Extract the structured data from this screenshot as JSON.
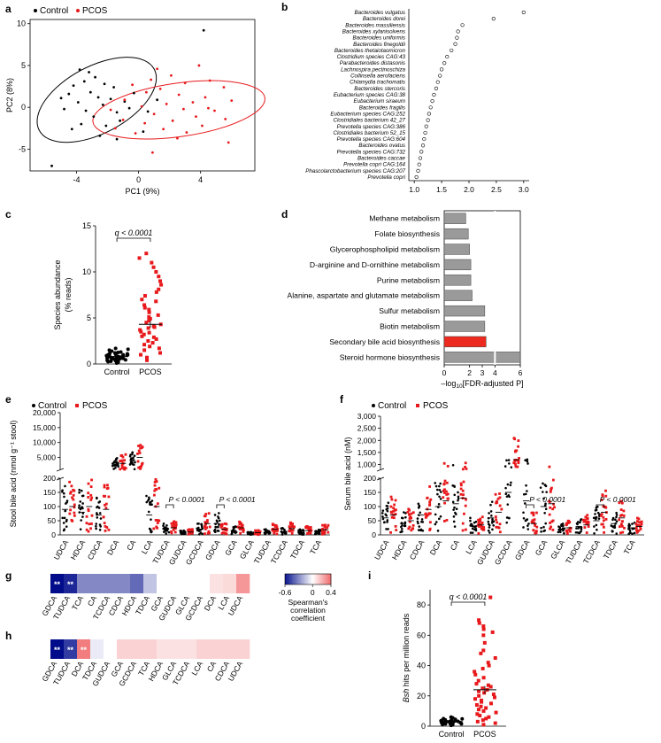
{
  "panels": {
    "a": "a",
    "b": "b",
    "c": "c",
    "d": "d",
    "e": "e",
    "f": "f",
    "g": "g",
    "h": "h",
    "i": "i"
  },
  "colors": {
    "control": "#000000",
    "pcos": "#e8191c",
    "bar_grey": "#9a9a9a",
    "bar_highlight": "#ec2a1f",
    "neg": "#000c8a",
    "pos": "#e8191c"
  },
  "legend": {
    "control": "Control",
    "pcos": "PCOS"
  },
  "chart_data": [
    {
      "id": "a",
      "type": "scatter",
      "xlabel": "PC1 (9%)",
      "ylabel": "PC2 (8%)",
      "xlim": [
        -7,
        7.5
      ],
      "ylim": [
        -7.6,
        10.5
      ],
      "xticks": [
        "-4",
        "0",
        "4"
      ],
      "xtick_values": [
        -4,
        0,
        4
      ],
      "yticks": [
        "-5",
        "0",
        "5",
        "10"
      ],
      "ytick_values": [
        -5,
        0,
        5,
        10
      ],
      "ellipses": [
        {
          "group": "control",
          "center": [
            -2.7,
            0.9
          ],
          "semi_axes": [
            4.2,
            4.0
          ],
          "angle_deg": 28
        },
        {
          "group": "pcos",
          "center": [
            2.6,
            -0.3
          ],
          "semi_axes": [
            5.6,
            3.2
          ],
          "angle_deg": 8
        }
      ],
      "series": [
        {
          "name": "Control",
          "points": [
            [
              -5.6,
              -7
            ],
            [
              4.2,
              9.2
            ],
            [
              -3.8,
              4.5
            ],
            [
              -3.2,
              4.2
            ],
            [
              -2.8,
              3.6
            ],
            [
              -3.5,
              3.1
            ],
            [
              -4.2,
              2.6
            ],
            [
              -2.2,
              2.8
            ],
            [
              -1.6,
              2.4
            ],
            [
              -3.1,
              1.8
            ],
            [
              -4.5,
              1.6
            ],
            [
              -2.6,
              1.2
            ],
            [
              -1.8,
              1.0
            ],
            [
              -3.9,
              0.6
            ],
            [
              -0.9,
              0.7
            ],
            [
              -2.3,
              0.3
            ],
            [
              -4.8,
              -0.2
            ],
            [
              -3.4,
              -0.4
            ],
            [
              -1.4,
              -0.6
            ],
            [
              -0.6,
              -0.1
            ],
            [
              0.6,
              -0.5
            ],
            [
              -2.9,
              -1.1
            ],
            [
              -3.7,
              -2.0
            ],
            [
              -2.1,
              -2.2
            ],
            [
              -1.2,
              -1.6
            ],
            [
              -4.3,
              -2.6
            ],
            [
              -2.5,
              -3.4
            ],
            [
              0.3,
              -2.9
            ],
            [
              -0.3,
              1.7
            ],
            [
              -5.0,
              1.1
            ],
            [
              -1.4,
              -3.8
            ],
            [
              1.2,
              0.9
            ]
          ]
        },
        {
          "name": "PCOS",
          "points": [
            [
              1.2,
              4.6
            ],
            [
              3.9,
              5.0
            ],
            [
              2.1,
              3.8
            ],
            [
              0.8,
              3.3
            ],
            [
              4.6,
              3.2
            ],
            [
              5.5,
              2.4
            ],
            [
              3.0,
              2.9
            ],
            [
              1.4,
              2.2
            ],
            [
              -0.4,
              2.7
            ],
            [
              0.5,
              1.8
            ],
            [
              2.6,
              1.5
            ],
            [
              4.3,
              1.2
            ],
            [
              6.0,
              0.8
            ],
            [
              3.5,
              0.6
            ],
            [
              1.8,
              0.4
            ],
            [
              -0.9,
              0.9
            ],
            [
              0.2,
              0.1
            ],
            [
              2.9,
              -0.2
            ],
            [
              4.9,
              -0.4
            ],
            [
              1.0,
              -0.8
            ],
            [
              -1.8,
              -0.3
            ],
            [
              3.7,
              -1.1
            ],
            [
              5.6,
              -1.4
            ],
            [
              2.2,
              -1.6
            ],
            [
              0.4,
              -1.9
            ],
            [
              -1.0,
              -1.5
            ],
            [
              4.1,
              -2.2
            ],
            [
              1.6,
              -2.6
            ],
            [
              -0.2,
              -3.1
            ],
            [
              3.1,
              -3.0
            ],
            [
              5.8,
              -4.2
            ],
            [
              0.9,
              -5.4
            ],
            [
              2.5,
              -3.7
            ],
            [
              -1.5,
              -2.5
            ],
            [
              4.5,
              -0.1
            ]
          ]
        }
      ]
    },
    {
      "id": "b",
      "type": "scatter",
      "xlim": [
        0.9,
        3.1
      ],
      "xticks": [
        "1.0",
        "1.5",
        "2.0",
        "2.5",
        "3.0"
      ],
      "xtick_values": [
        1.0,
        1.5,
        2.0,
        2.5,
        3.0
      ],
      "categories": [
        "Bacteroides vulgatus",
        "Bacteroides dorei",
        "Bacteroides massiliensis",
        "Bacteroides xylanisolvens",
        "Bacteroides uniformis",
        "Bacteroides finegoldii",
        "Bacteroides thetaiotaomicron",
        "Clostridium species CAG:43",
        "Parabacteroides distasonis",
        "Lachnospira pectinoschiza",
        "Collinsella aerofaciens",
        "Chlamydia trachomatis",
        "Bacteroides stercoris",
        "Eubacterium species CAG:38",
        "Eubacterium siraeum",
        "Bacteroides fragilis",
        "Eubacterium species CAG:252",
        "Clostridiales bacterium 42_27",
        "Prevotella species CAG:386",
        "Clostridiales bacterium 52_15",
        "Prevotella species CAG:604",
        "Bacteroides ovatus",
        "Prevotella species CAG:732",
        "Bacteroides caccae",
        "Prevotella copri CAG:164",
        "Phascolarctobacterium species CAG:207",
        "Prevotella copri"
      ],
      "values": [
        3.0,
        2.45,
        1.88,
        1.8,
        1.78,
        1.75,
        1.68,
        1.6,
        1.55,
        1.5,
        1.47,
        1.43,
        1.4,
        1.36,
        1.33,
        1.3,
        1.27,
        1.25,
        1.22,
        1.2,
        1.18,
        1.16,
        1.13,
        1.11,
        1.09,
        1.07,
        1.04
      ]
    },
    {
      "id": "c",
      "type": "scatter",
      "ylabel_lines": [
        "Species abundance",
        "(% reads)"
      ],
      "categories": [
        "Control",
        "PCOS"
      ],
      "ylim": [
        0,
        15
      ],
      "yticks": [
        "0",
        "5",
        "10",
        "15"
      ],
      "ytick_values": [
        0,
        5,
        10,
        15
      ],
      "annotation": "q < 0.0001",
      "mean_sem": [
        {
          "mean": 0.8,
          "sem": 0.08
        },
        {
          "mean": 4.3,
          "sem": 0.35
        }
      ],
      "series": [
        {
          "name": "Control",
          "values": [
            0.1,
            0.2,
            0.25,
            0.3,
            0.35,
            0.4,
            0.4,
            0.45,
            0.5,
            0.5,
            0.55,
            0.6,
            0.6,
            0.65,
            0.7,
            0.7,
            0.75,
            0.8,
            0.8,
            0.85,
            0.9,
            0.9,
            0.95,
            1.0,
            1.0,
            1.05,
            1.1,
            1.15,
            1.2,
            1.25,
            1.3,
            1.4,
            1.5,
            1.6,
            1.7,
            0.3,
            0.5,
            0.65,
            0.85,
            1.0
          ]
        },
        {
          "name": "PCOS",
          "values": [
            0.4,
            0.7,
            1.0,
            1.2,
            1.5,
            1.7,
            1.9,
            2.1,
            2.3,
            2.5,
            2.7,
            2.9,
            3.0,
            3.2,
            3.4,
            3.5,
            3.7,
            3.9,
            4.0,
            4.1,
            4.3,
            4.5,
            4.7,
            4.9,
            5.1,
            5.3,
            5.6,
            5.9,
            6.1,
            6.4,
            6.8,
            7.0,
            7.4,
            7.8,
            8.1,
            8.6,
            9.0,
            9.5,
            10.0,
            10.5,
            11.0,
            11.5,
            12.0
          ]
        }
      ]
    },
    {
      "id": "d",
      "type": "bar",
      "xlabel_pre": "–log",
      "xlabel_sub": "10",
      "xlabel_post": "[FDR-adjusted P]",
      "xlim": [
        0,
        6
      ],
      "xticks": [
        "0",
        "2",
        "3",
        "4",
        "6"
      ],
      "xtick_values": [
        0,
        2,
        3,
        4,
        6
      ],
      "categories": [
        "Methane metabolism",
        "Folate biosynthesis",
        "Glycerophospholipid metabolism",
        "D-arginine and D-ornithine metabolism",
        "Purine metabolism",
        "Alanine, aspartate and glutamate metabolism",
        "Sulfur metabolism",
        "Biotin metabolism",
        "Secondary bile acid biosynthesis",
        "Steroid hormone biosynthesis"
      ],
      "values": [
        1.7,
        1.9,
        2.0,
        2.1,
        2.1,
        2.2,
        3.2,
        3.2,
        3.3,
        6.0
      ],
      "highlight": "Secondary bile acid biosynthesis"
    },
    {
      "id": "e",
      "type": "scatter",
      "ylabel": "Stool bile acid (nmol g⁻¹ stool)",
      "categories": [
        "UDCA",
        "HDCA",
        "CDCA",
        "DCA",
        "CA",
        "LCA",
        "TUDCA",
        "GUDCA",
        "GCDCA",
        "GDCA",
        "GCA",
        "GLCA",
        "TUDCA",
        "TCDCA",
        "TDCA",
        "TCA"
      ],
      "upper_ticks": [
        "5,000",
        "10,000",
        "15,000",
        "20,000"
      ],
      "upper_tick_values": [
        5000,
        10000,
        15000,
        20000
      ],
      "lower_ticks": [
        "0",
        "50",
        "100",
        "150",
        "200"
      ],
      "lower_tick_values": [
        0,
        50,
        100,
        150,
        200
      ],
      "annotations": [
        {
          "text": "P < 0.0001",
          "category": "GDCA"
        },
        {
          "text": "P < 0.0001",
          "category": "TUDCA"
        }
      ],
      "series": [
        {
          "name": "Control",
          "medians": [
            90,
            80,
            70,
            2500,
            4000,
            70,
            20,
            8,
            20,
            40,
            15,
            5,
            10,
            12,
            10,
            10
          ]
        },
        {
          "name": "PCOS",
          "medians": [
            100,
            100,
            90,
            3000,
            5000,
            100,
            25,
            10,
            40,
            20,
            25,
            8,
            20,
            22,
            15,
            18
          ]
        }
      ]
    },
    {
      "id": "f",
      "type": "scatter",
      "ylabel": "Serum bile acid (nM)",
      "categories": [
        "UDCA",
        "HDCA",
        "CDCA",
        "DCA",
        "CA",
        "LCA",
        "GUDCA",
        "GCDCA",
        "GDCA",
        "GCA",
        "GLCA",
        "TUDCA",
        "TCDCA",
        "TDCA",
        "TCA"
      ],
      "upper_ticks": [
        "1,000",
        "1,500",
        "2,000",
        "2,500",
        "3,000"
      ],
      "upper_tick_values": [
        1000,
        1500,
        2000,
        2500,
        3000
      ],
      "lower_ticks": [
        "0",
        "50",
        "100",
        "150",
        "200"
      ],
      "lower_tick_values": [
        0,
        50,
        100,
        150,
        200
      ],
      "annotations": [
        {
          "text": "P < 0.0001",
          "category": "GDCA"
        },
        {
          "text": "P < 0.0001",
          "category": "TCDCA"
        }
      ],
      "series": [
        {
          "name": "Control",
          "medians": [
            60,
            40,
            70,
            100,
            110,
            30,
            60,
            150,
            120,
            100,
            20,
            30,
            50,
            40,
            25
          ]
        },
        {
          "name": "PCOS",
          "medians": [
            70,
            50,
            90,
            120,
            130,
            35,
            80,
            1200,
            40,
            110,
            25,
            35,
            80,
            60,
            30
          ]
        }
      ]
    },
    {
      "id": "g",
      "type": "heatmap",
      "categories": [
        "GDCA",
        "TUDCA",
        "TCA",
        "CA",
        "TCDCA",
        "CDCA",
        "HDCA",
        "TDCA",
        "GCA",
        "GUDCA",
        "GLCA",
        "GCDCA",
        "DCA",
        "LCA",
        "UDCA"
      ],
      "values": [
        -0.62,
        -0.55,
        -0.3,
        -0.3,
        -0.3,
        -0.3,
        -0.38,
        -0.15,
        0,
        0,
        0,
        0,
        0.08,
        0.1,
        0.28
      ],
      "labels": [
        "**",
        "**",
        "",
        "",
        "",
        "",
        "",
        "",
        "",
        "",
        "",
        "",
        "",
        "",
        ""
      ],
      "colorbar": {
        "min": -0.6,
        "max": 0.4,
        "ticks": [
          "-0.6",
          "0",
          "0.4"
        ],
        "tick_values": [
          -0.6,
          0,
          0.4
        ],
        "label_lines": [
          "Spearman's",
          "correlation",
          "coefficient"
        ]
      }
    },
    {
      "id": "h",
      "type": "heatmap",
      "categories": [
        "GDCA",
        "TUDCA",
        "DCA",
        "TDCA",
        "GUDCA",
        "GCA",
        "GCDCA",
        "TCA",
        "HDCA",
        "GLCA",
        "TCDCA",
        "LCA",
        "CA",
        "CDCA",
        "UDCA"
      ],
      "values": [
        -0.62,
        -0.5,
        0.35,
        -0.05,
        0,
        0.12,
        0.12,
        0.12,
        0.08,
        0.08,
        0.08,
        0.12,
        0.12,
        0.12,
        0.12
      ],
      "labels": [
        "**",
        "**",
        "**",
        "",
        "",
        "",
        "",
        "",
        "",
        "",
        "",
        "",
        "",
        "",
        ""
      ]
    },
    {
      "id": "i",
      "type": "scatter",
      "ylabel": "Bsh hits per million reads",
      "ylabel_italic": "Bsh",
      "ylabel_rest": " hits per million reads",
      "categories": [
        "Control",
        "PCOS"
      ],
      "ylim": [
        0,
        90
      ],
      "yticks": [
        "0",
        "20",
        "40",
        "60",
        "80"
      ],
      "ytick_values": [
        0,
        20,
        40,
        60,
        80
      ],
      "annotation": "q < 0.0001",
      "mean_sem": [
        {
          "mean": 3,
          "sem": 0.3
        },
        {
          "mean": 24,
          "sem": 2.5
        }
      ],
      "series": [
        {
          "name": "Control",
          "values": [
            0.5,
            1,
            1.2,
            1.5,
            1.8,
            2,
            2.2,
            2.5,
            2.8,
            3,
            3,
            3.2,
            3.5,
            3.8,
            4,
            4.2,
            4.5,
            5,
            5.5,
            6,
            2.5,
            3.5,
            1.5,
            4.8,
            2.2
          ]
        },
        {
          "name": "PCOS",
          "values": [
            1,
            2,
            3,
            4,
            5,
            6,
            7,
            8,
            9,
            10,
            11,
            12,
            13,
            14,
            15,
            16,
            17,
            18,
            19,
            20,
            21,
            22,
            23,
            24,
            25,
            26,
            27,
            28,
            30,
            32,
            34,
            36,
            38,
            40,
            42,
            45,
            48,
            50,
            55,
            60,
            62,
            64,
            66,
            68,
            70,
            85
          ]
        }
      ]
    }
  ]
}
